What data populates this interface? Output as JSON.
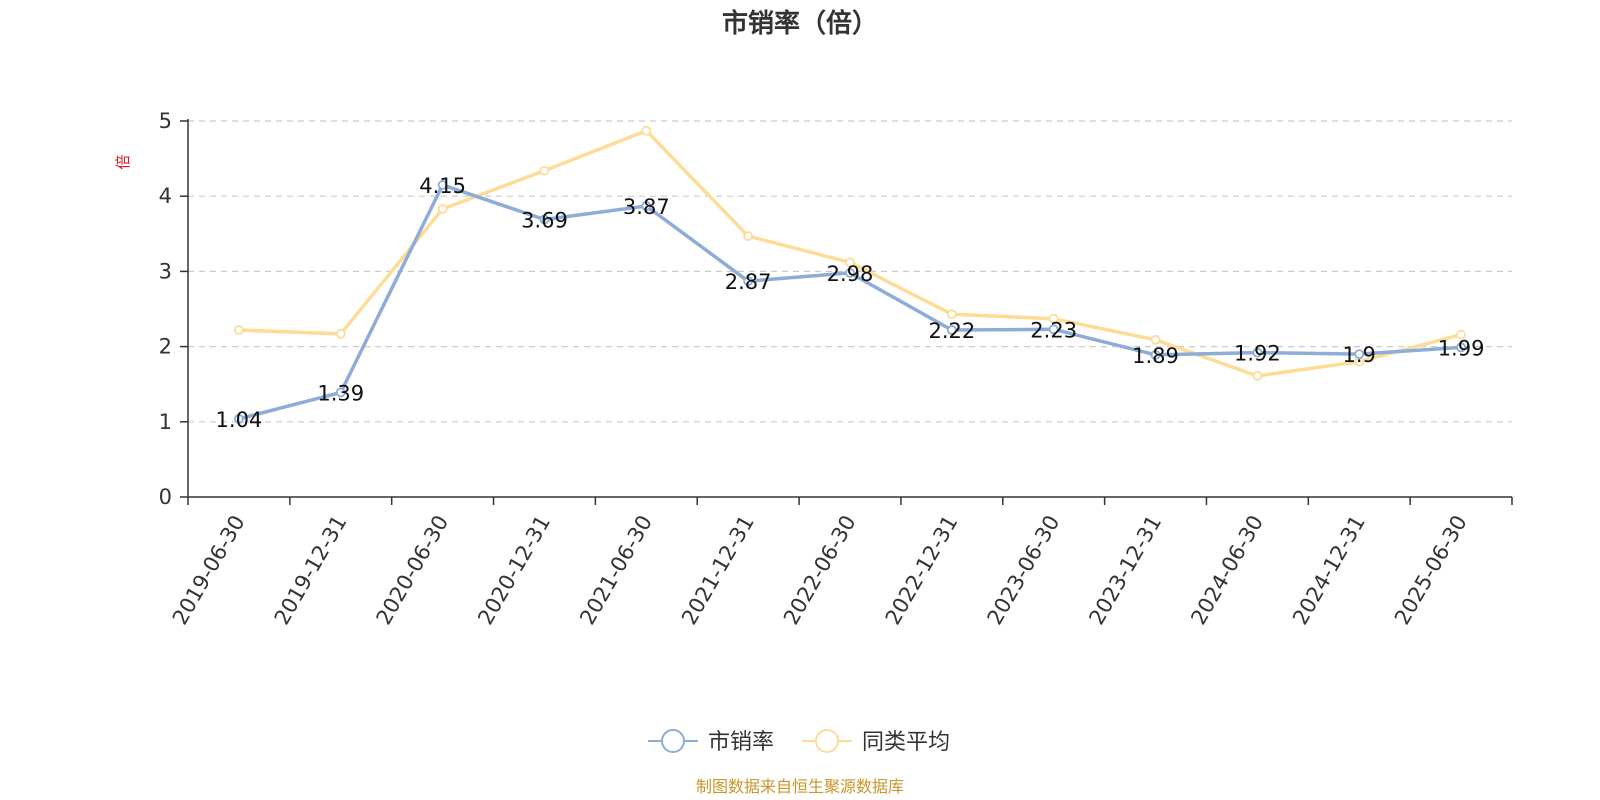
{
  "chart_data": {
    "type": "line",
    "title": "市销率（倍）",
    "ylabel": "倍",
    "xlabel": "",
    "ylim": [
      0,
      5
    ],
    "yticks": [
      0,
      1,
      2,
      3,
      4,
      5
    ],
    "grid": true,
    "legend_position": "bottom-center",
    "categories": [
      "2019-06-30",
      "2019-12-31",
      "2020-06-30",
      "2020-12-31",
      "2021-06-30",
      "2021-12-31",
      "2022-06-30",
      "2022-12-31",
      "2023-06-30",
      "2023-12-31",
      "2024-06-30",
      "2024-12-31",
      "2025-06-30"
    ],
    "series": [
      {
        "name": "市销率",
        "color": "#8eacd8",
        "values": [
          1.04,
          1.39,
          4.15,
          3.69,
          3.87,
          2.87,
          2.98,
          2.22,
          2.23,
          1.89,
          1.92,
          1.9,
          1.99
        ],
        "labels": [
          "1.04",
          "1.39",
          "4.15",
          "3.69",
          "3.87",
          "2.87",
          "2.98",
          "2.22",
          "2.23",
          "1.89",
          "1.92",
          "1.9",
          "1.99"
        ]
      },
      {
        "name": "同类平均",
        "color": "#fddc98",
        "values": [
          2.22,
          2.17,
          3.83,
          4.34,
          4.87,
          3.47,
          3.12,
          2.43,
          2.37,
          2.09,
          1.61,
          1.8,
          2.16
        ]
      }
    ]
  },
  "colors": {
    "axis": "#333333",
    "grid": "#cccccc",
    "ylabel": "#e8101b",
    "source": "#c8962a"
  },
  "source": "制图数据来自恒生聚源数据库"
}
